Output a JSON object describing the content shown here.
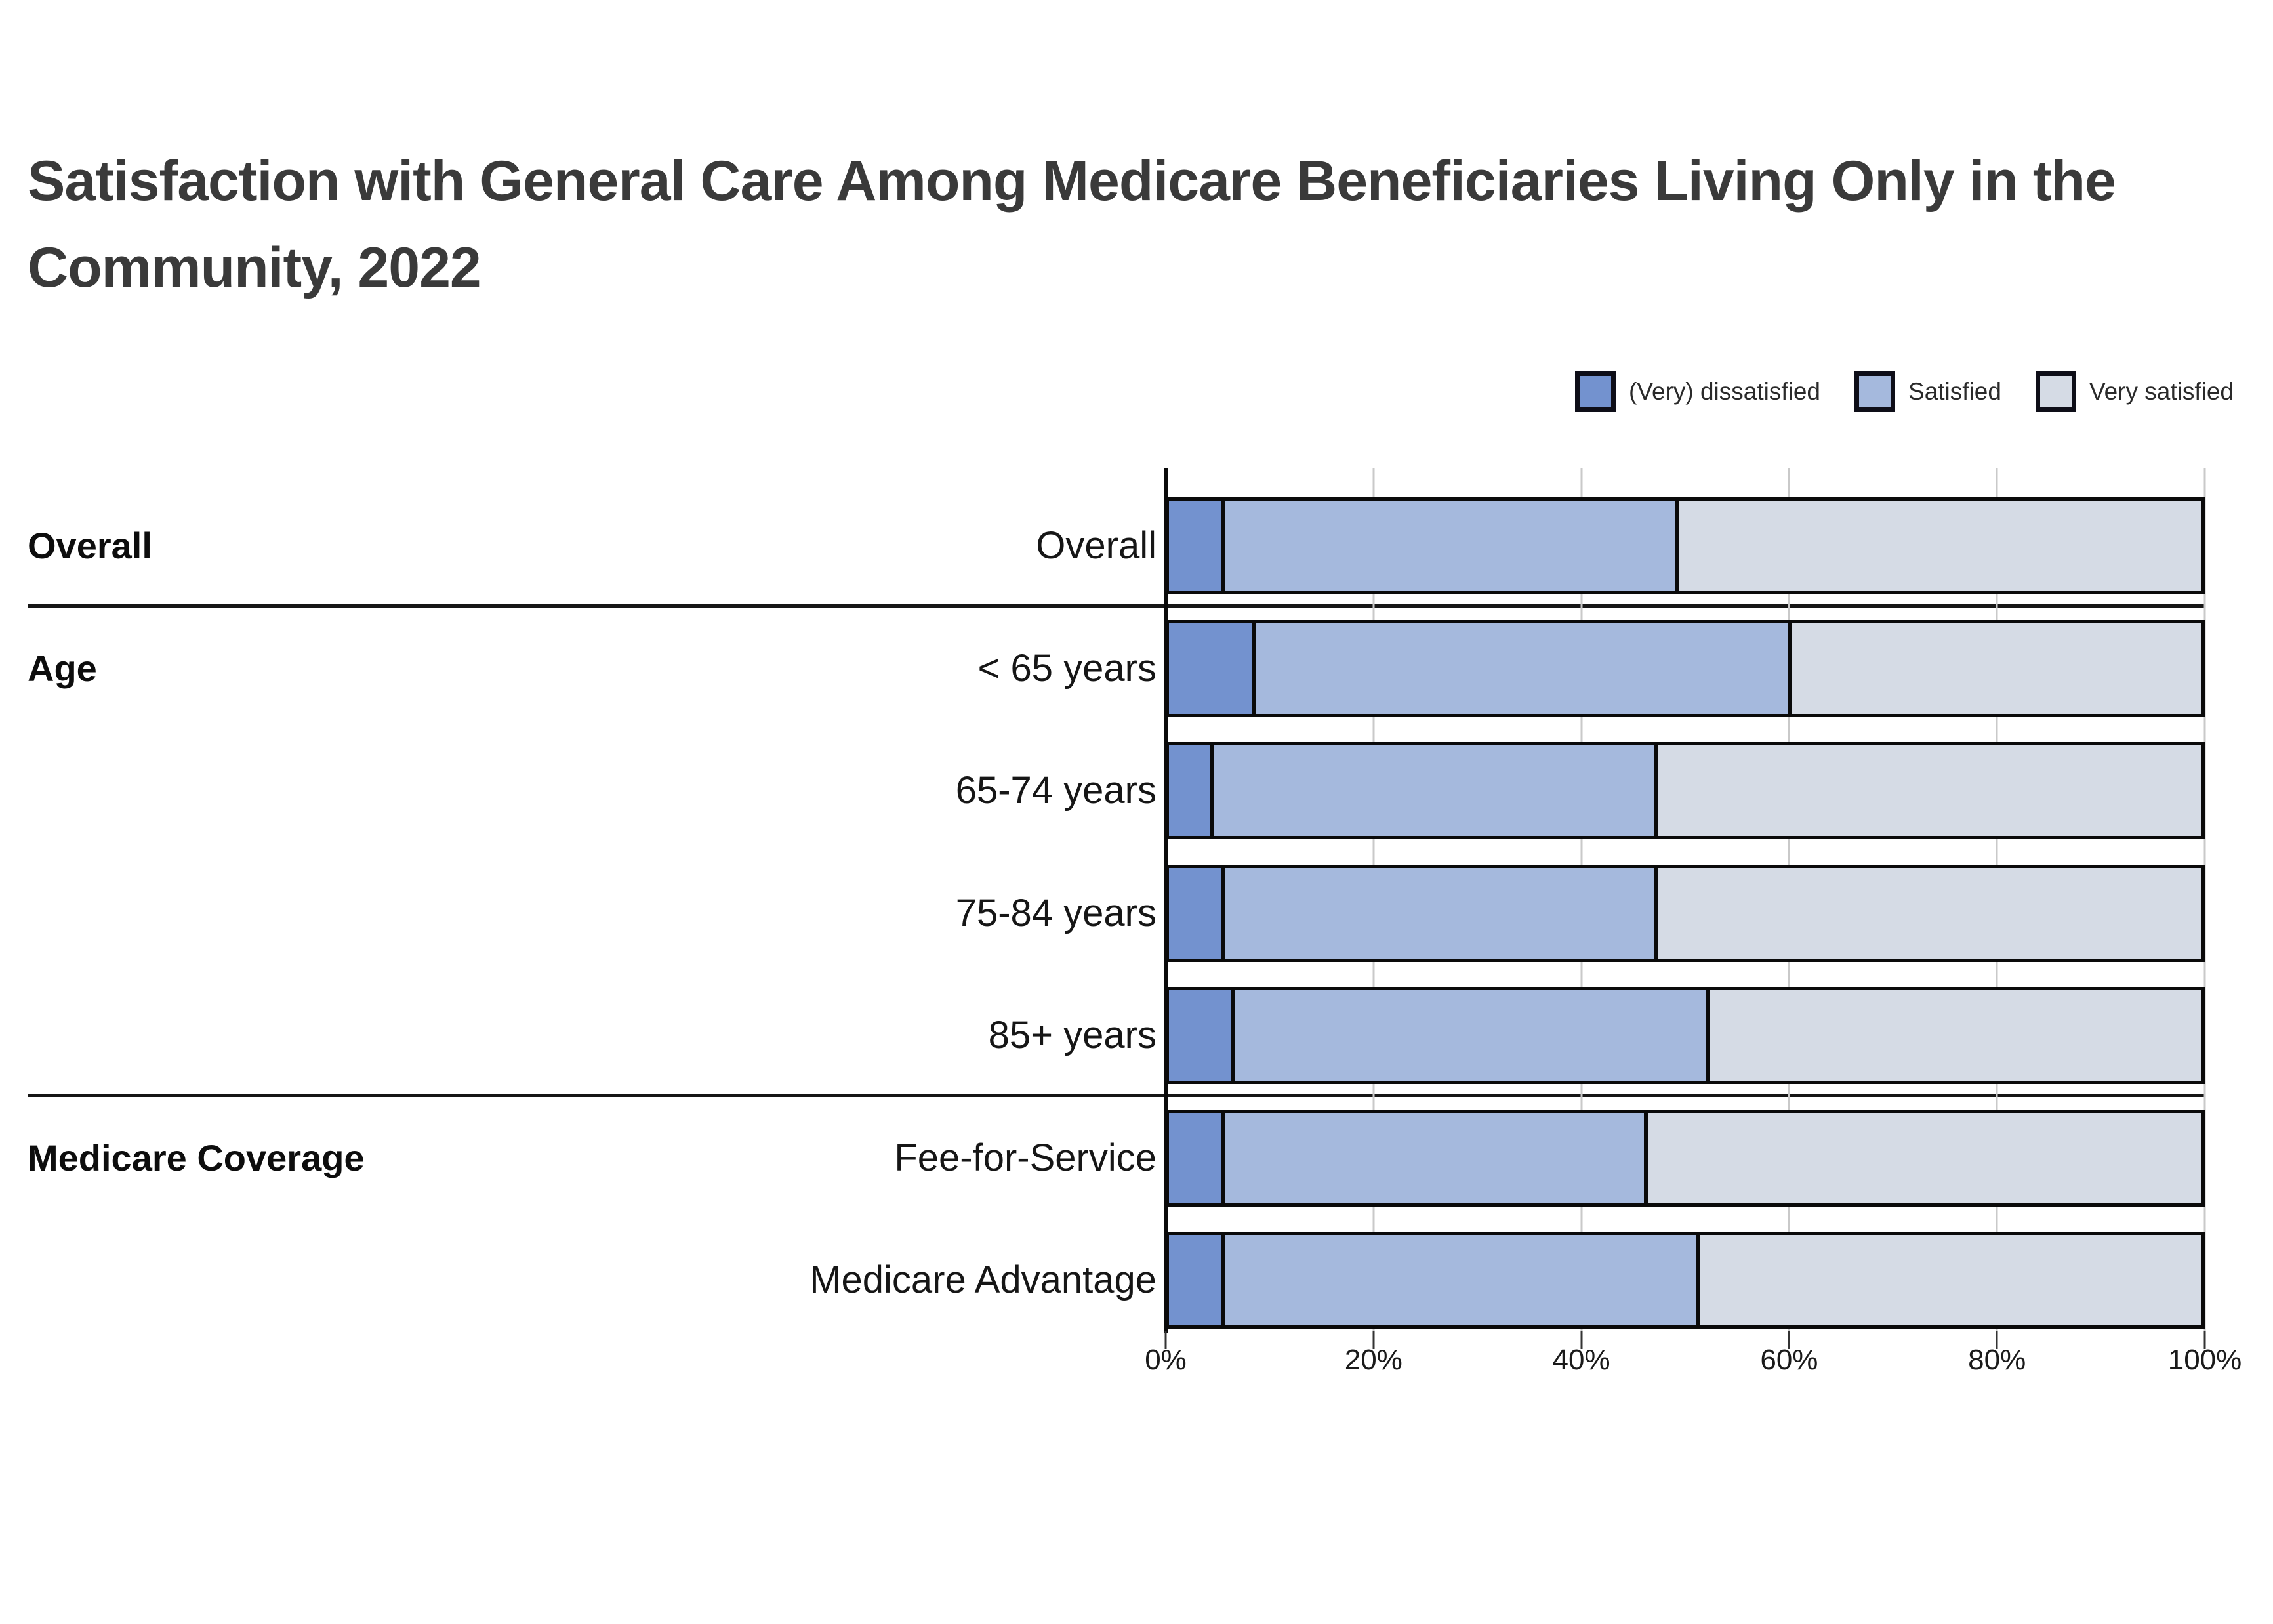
{
  "title": {
    "line1": "Satisfaction with General Care Among Medicare Beneficiaries Living Only in the",
    "line2": "Community, 2022"
  },
  "legend": {
    "items": [
      {
        "label": "(Very) dissatisfied",
        "color": "#7392CF"
      },
      {
        "label": "Satisfied",
        "color": "#A5B9DD"
      },
      {
        "label": "Very satisfied",
        "color": "#D5DBE5"
      }
    ],
    "swatch_border_color": "#0e0e18"
  },
  "chart_data": {
    "type": "bar",
    "orientation": "horizontal",
    "stacked": true,
    "units": "percent",
    "series_names": [
      "(Very) dissatisfied",
      "Satisfied",
      "Very satisfied"
    ],
    "series_colors": [
      "#7392CF",
      "#A5B9DD",
      "#D5DBE5"
    ],
    "x_axis": {
      "min": 0,
      "max": 100,
      "ticks": [
        "0%",
        "20%",
        "40%",
        "60%",
        "80%",
        "100%"
      ],
      "grid": true
    },
    "groups": [
      {
        "label": "Overall",
        "rows": [
          {
            "label": "Overall",
            "values": [
              5,
              44,
              51
            ]
          }
        ]
      },
      {
        "label": "Age",
        "rows": [
          {
            "label": "< 65 years",
            "values": [
              8,
              52,
              40
            ]
          },
          {
            "label": "65-74 years",
            "values": [
              4,
              43,
              53
            ]
          },
          {
            "label": "75-84 years",
            "values": [
              5,
              42,
              53
            ]
          },
          {
            "label": "85+ years",
            "values": [
              6,
              46,
              48
            ]
          }
        ]
      },
      {
        "label": "Medicare Coverage",
        "rows": [
          {
            "label": "Fee-for-Service",
            "values": [
              5,
              41,
              54
            ]
          },
          {
            "label": "Medicare Advantage",
            "values": [
              5,
              46,
              49
            ]
          }
        ]
      }
    ]
  }
}
